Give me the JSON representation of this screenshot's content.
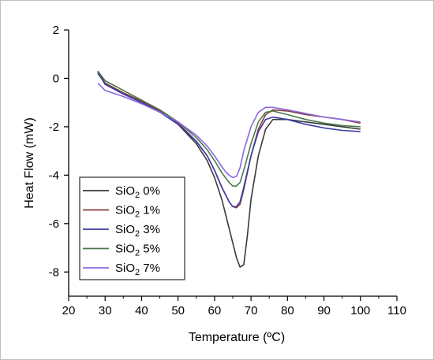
{
  "chart_data": {
    "type": "line",
    "xlabel": "Temperature (ºC)",
    "ylabel": "Heat Flow (mW)",
    "xlim": [
      20,
      110
    ],
    "ylim": [
      -9,
      2
    ],
    "xticks": [
      "20",
      "30",
      "40",
      "50",
      "60",
      "70",
      "80",
      "90",
      "100",
      "110"
    ],
    "yticks": [
      "2",
      "0",
      "-2",
      "-4",
      "-6",
      "-8"
    ],
    "grid": false,
    "legend_position": "bottom-left",
    "series": [
      {
        "name": "SiO2 0%",
        "label_main": "SiO",
        "label_sub": "2",
        "label_tail": " 0%",
        "color": "#3a3a3a",
        "x": [
          28,
          30,
          35,
          40,
          45,
          50,
          55,
          58,
          60,
          62,
          64,
          66,
          67,
          68,
          69,
          70,
          72,
          74,
          76,
          80,
          85,
          90,
          95,
          100
        ],
        "y": [
          0.2,
          -0.2,
          -0.6,
          -0.95,
          -1.35,
          -1.9,
          -2.7,
          -3.4,
          -4.1,
          -5.0,
          -6.2,
          -7.4,
          -7.8,
          -7.7,
          -6.5,
          -5.0,
          -3.2,
          -2.1,
          -1.7,
          -1.7,
          -1.8,
          -1.9,
          -2.0,
          -2.1
        ]
      },
      {
        "name": "SiO2 1%",
        "label_main": "SiO",
        "label_sub": "2",
        "label_tail": " 1%",
        "color": "#8a3a3a",
        "x": [
          28,
          30,
          35,
          40,
          45,
          50,
          55,
          58,
          60,
          62,
          64,
          65,
          66,
          67,
          68,
          70,
          72,
          74,
          76,
          80,
          85,
          90,
          95,
          100
        ],
        "y": [
          0.3,
          -0.2,
          -0.6,
          -0.95,
          -1.35,
          -1.85,
          -2.6,
          -3.2,
          -3.8,
          -4.5,
          -5.1,
          -5.3,
          -5.35,
          -5.2,
          -4.6,
          -3.2,
          -2.1,
          -1.5,
          -1.3,
          -1.35,
          -1.5,
          -1.6,
          -1.7,
          -1.85
        ]
      },
      {
        "name": "SiO2 3%",
        "label_main": "SiO",
        "label_sub": "2",
        "label_tail": " 3%",
        "color": "#3a3aa8",
        "x": [
          28,
          30,
          35,
          40,
          45,
          50,
          55,
          58,
          60,
          62,
          64,
          65,
          66,
          67,
          68,
          70,
          72,
          74,
          76,
          80,
          85,
          90,
          95,
          100
        ],
        "y": [
          0.25,
          -0.25,
          -0.65,
          -1.0,
          -1.4,
          -1.9,
          -2.6,
          -3.2,
          -3.8,
          -4.5,
          -5.1,
          -5.3,
          -5.3,
          -5.1,
          -4.5,
          -3.2,
          -2.2,
          -1.7,
          -1.6,
          -1.7,
          -1.9,
          -2.05,
          -2.15,
          -2.2
        ]
      },
      {
        "name": "SiO2 5%",
        "label_main": "SiO",
        "label_sub": "2",
        "label_tail": " 5%",
        "color": "#4a7a4a",
        "x": [
          28,
          30,
          35,
          40,
          45,
          50,
          55,
          58,
          60,
          62,
          64,
          65,
          66,
          67,
          68,
          70,
          72,
          74,
          76,
          80,
          85,
          90,
          95,
          100
        ],
        "y": [
          0.3,
          -0.1,
          -0.5,
          -0.9,
          -1.3,
          -1.8,
          -2.45,
          -2.95,
          -3.4,
          -3.9,
          -4.3,
          -4.45,
          -4.45,
          -4.3,
          -3.8,
          -2.7,
          -1.8,
          -1.4,
          -1.35,
          -1.5,
          -1.7,
          -1.85,
          -1.95,
          -2.0
        ]
      },
      {
        "name": "SiO2 7%",
        "label_main": "SiO",
        "label_sub": "2",
        "label_tail": " 7%",
        "color": "#8a6ae0",
        "x": [
          28,
          30,
          35,
          40,
          45,
          50,
          55,
          58,
          60,
          62,
          63,
          64,
          65,
          66,
          67,
          68,
          70,
          72,
          74,
          76,
          80,
          85,
          90,
          95,
          100
        ],
        "y": [
          -0.2,
          -0.5,
          -0.75,
          -1.05,
          -1.4,
          -1.8,
          -2.35,
          -2.8,
          -3.2,
          -3.65,
          -3.85,
          -4.0,
          -4.1,
          -4.05,
          -3.7,
          -3.0,
          -2.0,
          -1.4,
          -1.2,
          -1.2,
          -1.3,
          -1.45,
          -1.6,
          -1.7,
          -1.8
        ]
      }
    ]
  }
}
